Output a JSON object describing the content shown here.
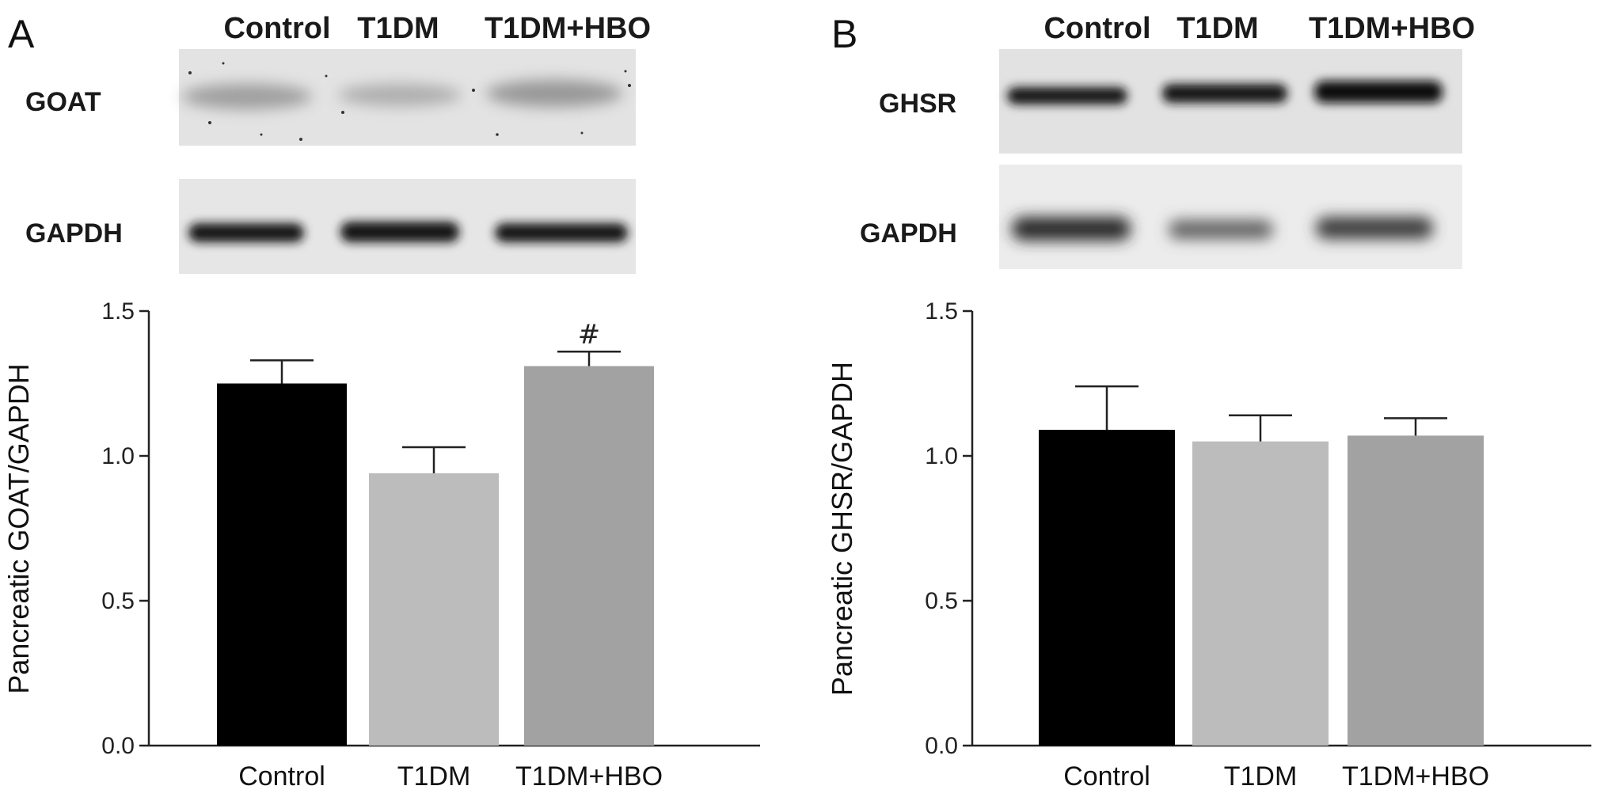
{
  "panels": [
    {
      "letter": "A",
      "lanes": [
        "Control",
        "T1DM",
        "T1DM+HBO"
      ],
      "blots": [
        "GOAT",
        "GAPDH"
      ]
    },
    {
      "letter": "B",
      "lanes": [
        "Control",
        "T1DM",
        "T1DM+HBO"
      ],
      "blots": [
        "GHSR",
        "GAPDH"
      ]
    }
  ],
  "chart_data": [
    {
      "type": "bar",
      "title": "",
      "xlabel": "",
      "ylabel": "Pancreatic GOAT/GAPDH",
      "categories": [
        "Control",
        "T1DM",
        "T1DM+HBO"
      ],
      "values": [
        1.25,
        0.94,
        1.31
      ],
      "errors": [
        0.08,
        0.09,
        0.05
      ],
      "annotations": [
        "",
        "",
        "#"
      ],
      "ylim": [
        0,
        1.5
      ],
      "yticks": [
        "0.0",
        "0.5",
        "1.0",
        "1.5"
      ],
      "bar_colors": [
        "#000000",
        "#bcbcbc",
        "#a2a2a2"
      ],
      "grid": false
    },
    {
      "type": "bar",
      "title": "",
      "xlabel": "",
      "ylabel": "Pancreatic GHSR/GAPDH",
      "categories": [
        "Control",
        "T1DM",
        "T1DM+HBO"
      ],
      "values": [
        1.09,
        1.05,
        1.07
      ],
      "errors": [
        0.15,
        0.09,
        0.06
      ],
      "annotations": [
        "",
        "",
        ""
      ],
      "ylim": [
        0,
        1.5
      ],
      "yticks": [
        "0.0",
        "0.5",
        "1.0",
        "1.5"
      ],
      "bar_colors": [
        "#000000",
        "#bcbcbc",
        "#a2a2a2"
      ],
      "grid": false
    }
  ]
}
